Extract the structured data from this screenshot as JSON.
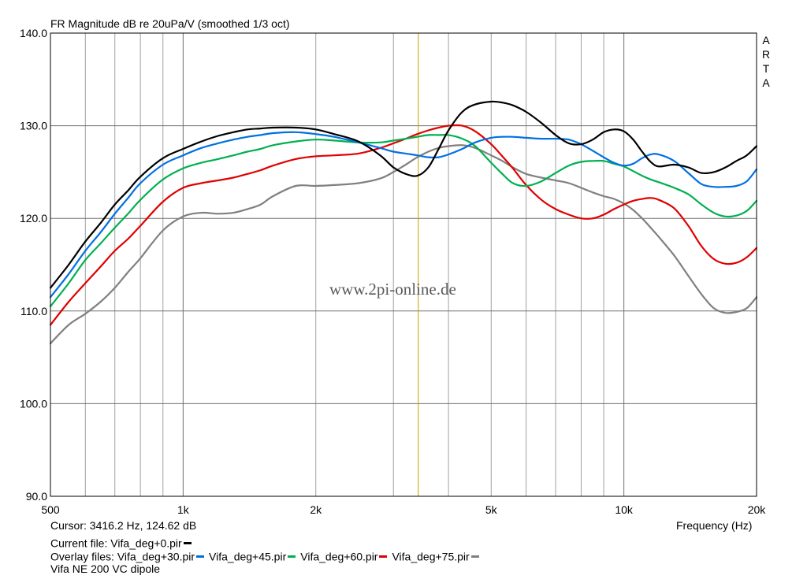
{
  "header": {
    "title": "FR Magnitude dB re 20uPa/V (smoothed 1/3 oct)",
    "watermark": "www.2pi-online.de",
    "side_letters": [
      "A",
      "R",
      "T",
      "A"
    ]
  },
  "footer": {
    "cursor": "Cursor: 3416.2 Hz, 124.62 dB",
    "frequency_label": "Frequency (Hz)",
    "current_file_prefix": "Current file: ",
    "current_file": "Vifa_deg+0.pir",
    "overlay_prefix": "Overlay files: ",
    "overlay_files": [
      "Vifa_deg+30.pir",
      "Vifa_deg+45.pir",
      "Vifa_deg+60.pir",
      "Vifa_deg+75.pir"
    ],
    "note": "Vifa NE 200 VC dipole"
  },
  "chart_data": {
    "type": "line",
    "title": "FR Magnitude dB re 20uPa/V (smoothed 1/3 oct)",
    "xlabel": "Frequency (Hz)",
    "ylabel": "",
    "x_scale": "log",
    "xlim": [
      500,
      20000
    ],
    "ylim": [
      90,
      140
    ],
    "grid": true,
    "x_tick_labels": [
      {
        "value": 500,
        "label": "500"
      },
      {
        "value": 1000,
        "label": "1k"
      },
      {
        "value": 2000,
        "label": "2k"
      },
      {
        "value": 5000,
        "label": "5k"
      },
      {
        "value": 10000,
        "label": "10k"
      },
      {
        "value": 20000,
        "label": "20k"
      }
    ],
    "y_tick_labels": [
      {
        "value": 90,
        "label": "90.0"
      },
      {
        "value": 100,
        "label": "100.0"
      },
      {
        "value": 110,
        "label": "110.0"
      },
      {
        "value": 120,
        "label": "120.0"
      },
      {
        "value": 130,
        "label": "130.0"
      },
      {
        "value": 140,
        "label": "140.0"
      }
    ],
    "cursor_x": 3416.2,
    "colors": {
      "background": "#ffffff",
      "grid": "#a0a0a0",
      "cursor": "#c8a000"
    },
    "series": [
      {
        "name": "Vifa_deg+0.pir",
        "color": "#000000",
        "x": [
          500,
          550,
          600,
          650,
          700,
          750,
          800,
          900,
          1000,
          1100,
          1200,
          1300,
          1400,
          1500,
          1600,
          1800,
          2000,
          2200,
          2500,
          2800,
          3000,
          3200,
          3400,
          3600,
          3800,
          4000,
          4300,
          4600,
          5000,
          5300,
          5600,
          6000,
          6500,
          7000,
          7500,
          8000,
          8500,
          9000,
          9500,
          10000,
          10500,
          11000,
          11500,
          12000,
          13000,
          14000,
          15000,
          16000,
          17000,
          18000,
          19000,
          20000
        ],
        "y": [
          112.5,
          115,
          117.5,
          119.5,
          121.5,
          123,
          124.5,
          126.5,
          127.5,
          128.3,
          128.9,
          129.3,
          129.6,
          129.7,
          129.8,
          129.8,
          129.6,
          129.1,
          128.3,
          126.8,
          125.5,
          124.8,
          124.6,
          125.5,
          127.5,
          129.5,
          131.5,
          132.3,
          132.6,
          132.5,
          132.2,
          131.5,
          130.3,
          129,
          128.1,
          128,
          128.5,
          129.3,
          129.6,
          129.4,
          128.5,
          127.2,
          126.1,
          125.6,
          125.8,
          125.5,
          124.9,
          125,
          125.5,
          126.2,
          126.8,
          127.8
        ]
      },
      {
        "name": "Vifa_deg+30.pir",
        "color": "#0070e0",
        "x": [
          500,
          550,
          600,
          650,
          700,
          750,
          800,
          900,
          1000,
          1100,
          1200,
          1300,
          1400,
          1500,
          1600,
          1800,
          2000,
          2200,
          2500,
          2800,
          3000,
          3200,
          3400,
          3600,
          3800,
          4000,
          4300,
          4600,
          5000,
          5300,
          5600,
          6000,
          6500,
          7000,
          7500,
          8000,
          8500,
          9000,
          9500,
          10000,
          10500,
          11000,
          11500,
          12000,
          13000,
          14000,
          15000,
          16000,
          17000,
          18000,
          19000,
          20000
        ],
        "y": [
          111.5,
          114,
          116.5,
          118.5,
          120.5,
          122.2,
          123.8,
          125.8,
          126.8,
          127.6,
          128.1,
          128.5,
          128.8,
          129,
          129.2,
          129.3,
          129.1,
          128.8,
          128.2,
          127.6,
          127.2,
          127,
          126.8,
          126.6,
          126.6,
          126.9,
          127.5,
          128.2,
          128.7,
          128.8,
          128.8,
          128.7,
          128.6,
          128.6,
          128.5,
          128,
          127.3,
          126.6,
          126,
          125.7,
          125.9,
          126.5,
          126.9,
          126.9,
          126.2,
          124.9,
          123.7,
          123.4,
          123.4,
          123.5,
          124,
          125.3
        ]
      },
      {
        "name": "Vifa_deg+45.pir",
        "color": "#00b050",
        "x": [
          500,
          550,
          600,
          650,
          700,
          750,
          800,
          900,
          1000,
          1100,
          1200,
          1300,
          1400,
          1500,
          1600,
          1800,
          2000,
          2200,
          2500,
          2800,
          3000,
          3200,
          3400,
          3600,
          3800,
          4000,
          4300,
          4600,
          5000,
          5300,
          5600,
          6000,
          6500,
          7000,
          7500,
          8000,
          8500,
          9000,
          9500,
          10000,
          10500,
          11000,
          11500,
          12000,
          13000,
          14000,
          15000,
          16000,
          17000,
          18000,
          19000,
          20000
        ],
        "y": [
          110.5,
          113,
          115.5,
          117.3,
          119,
          120.5,
          122,
          124.2,
          125.4,
          126,
          126.4,
          126.8,
          127.2,
          127.5,
          127.9,
          128.3,
          128.5,
          128.4,
          128.2,
          128.2,
          128.4,
          128.6,
          128.8,
          129,
          129,
          129,
          128.6,
          127.8,
          126,
          124.8,
          123.8,
          123.5,
          124,
          124.9,
          125.7,
          126.1,
          126.2,
          126.2,
          125.9,
          125.6,
          125.1,
          124.6,
          124.2,
          123.9,
          123.3,
          122.6,
          121.5,
          120.6,
          120.2,
          120.3,
          120.8,
          121.9
        ]
      },
      {
        "name": "Vifa_deg+60.pir",
        "color": "#e00000",
        "x": [
          500,
          550,
          600,
          650,
          700,
          750,
          800,
          900,
          1000,
          1100,
          1200,
          1300,
          1400,
          1500,
          1600,
          1800,
          2000,
          2200,
          2500,
          2800,
          3000,
          3200,
          3400,
          3600,
          3800,
          4000,
          4300,
          4600,
          5000,
          5300,
          5600,
          6000,
          6500,
          7000,
          7500,
          8000,
          8500,
          9000,
          9500,
          10000,
          10500,
          11000,
          11500,
          12000,
          13000,
          14000,
          15000,
          16000,
          17000,
          18000,
          19000,
          20000
        ],
        "y": [
          108.5,
          111,
          113,
          114.8,
          116.5,
          117.8,
          119.2,
          121.8,
          123.3,
          123.8,
          124.1,
          124.4,
          124.8,
          125.2,
          125.7,
          126.4,
          126.7,
          126.8,
          127,
          127.6,
          128.1,
          128.6,
          129.1,
          129.5,
          129.8,
          130,
          130,
          129.4,
          128,
          126.7,
          125.4,
          123.6,
          122,
          121,
          120.4,
          120,
          120,
          120.4,
          121,
          121.5,
          121.9,
          122.1,
          122.2,
          122,
          121.1,
          119.2,
          117,
          115.6,
          115.1,
          115.2,
          115.8,
          116.8
        ]
      },
      {
        "name": "Vifa_deg+75.pir",
        "color": "#808080",
        "x": [
          500,
          550,
          600,
          650,
          700,
          750,
          800,
          900,
          1000,
          1100,
          1200,
          1300,
          1400,
          1500,
          1600,
          1800,
          2000,
          2200,
          2500,
          2800,
          3000,
          3200,
          3400,
          3600,
          3800,
          4000,
          4300,
          4600,
          5000,
          5300,
          5600,
          6000,
          6500,
          7000,
          7500,
          8000,
          8500,
          9000,
          9500,
          10000,
          10500,
          11000,
          11500,
          12000,
          13000,
          14000,
          15000,
          16000,
          17000,
          18000,
          19000,
          20000
        ],
        "y": [
          106.5,
          108.5,
          109.7,
          111,
          112.5,
          114.2,
          115.7,
          118.7,
          120.2,
          120.6,
          120.5,
          120.6,
          121,
          121.5,
          122.4,
          123.5,
          123.5,
          123.6,
          123.8,
          124.3,
          125,
          125.8,
          126.6,
          127.2,
          127.6,
          127.8,
          127.9,
          127.6,
          126.8,
          126.2,
          125.5,
          124.8,
          124.4,
          124.1,
          123.8,
          123.3,
          122.8,
          122.4,
          122.1,
          121.6,
          120.9,
          120,
          119,
          118,
          116,
          113.8,
          111.8,
          110.3,
          109.8,
          109.9,
          110.3,
          111.5
        ]
      }
    ]
  }
}
